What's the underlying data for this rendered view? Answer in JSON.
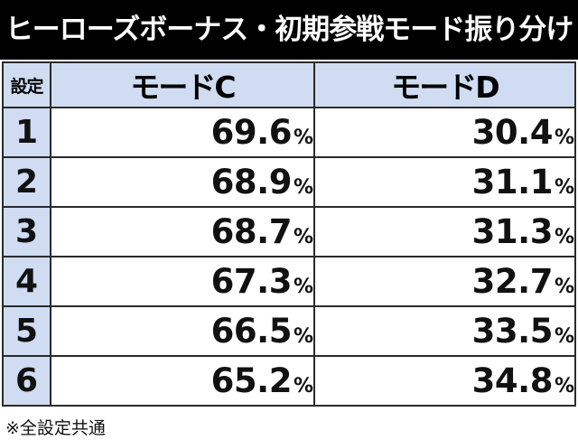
{
  "title": "ヒーローズボーナス・初期参戦モード振り分け",
  "header": {
    "setting_label": "設定",
    "mode_c_label": "モードC",
    "mode_d_label": "モードD"
  },
  "rows": [
    {
      "setting": "1",
      "mode_c": "69.6",
      "mode_d": "30.4"
    },
    {
      "setting": "2",
      "mode_c": "68.9",
      "mode_d": "31.1"
    },
    {
      "setting": "3",
      "mode_c": "68.7",
      "mode_d": "31.3"
    },
    {
      "setting": "4",
      "mode_c": "67.3",
      "mode_d": "32.7"
    },
    {
      "setting": "5",
      "mode_c": "66.5",
      "mode_d": "33.5"
    },
    {
      "setting": "6",
      "mode_c": "65.2",
      "mode_d": "34.8"
    }
  ],
  "percent_sign": "%",
  "footnote": "※全設定共通",
  "colors": {
    "title_background": "#000000",
    "header_background": "#cfdcf2",
    "border": "#2a2a2a"
  }
}
